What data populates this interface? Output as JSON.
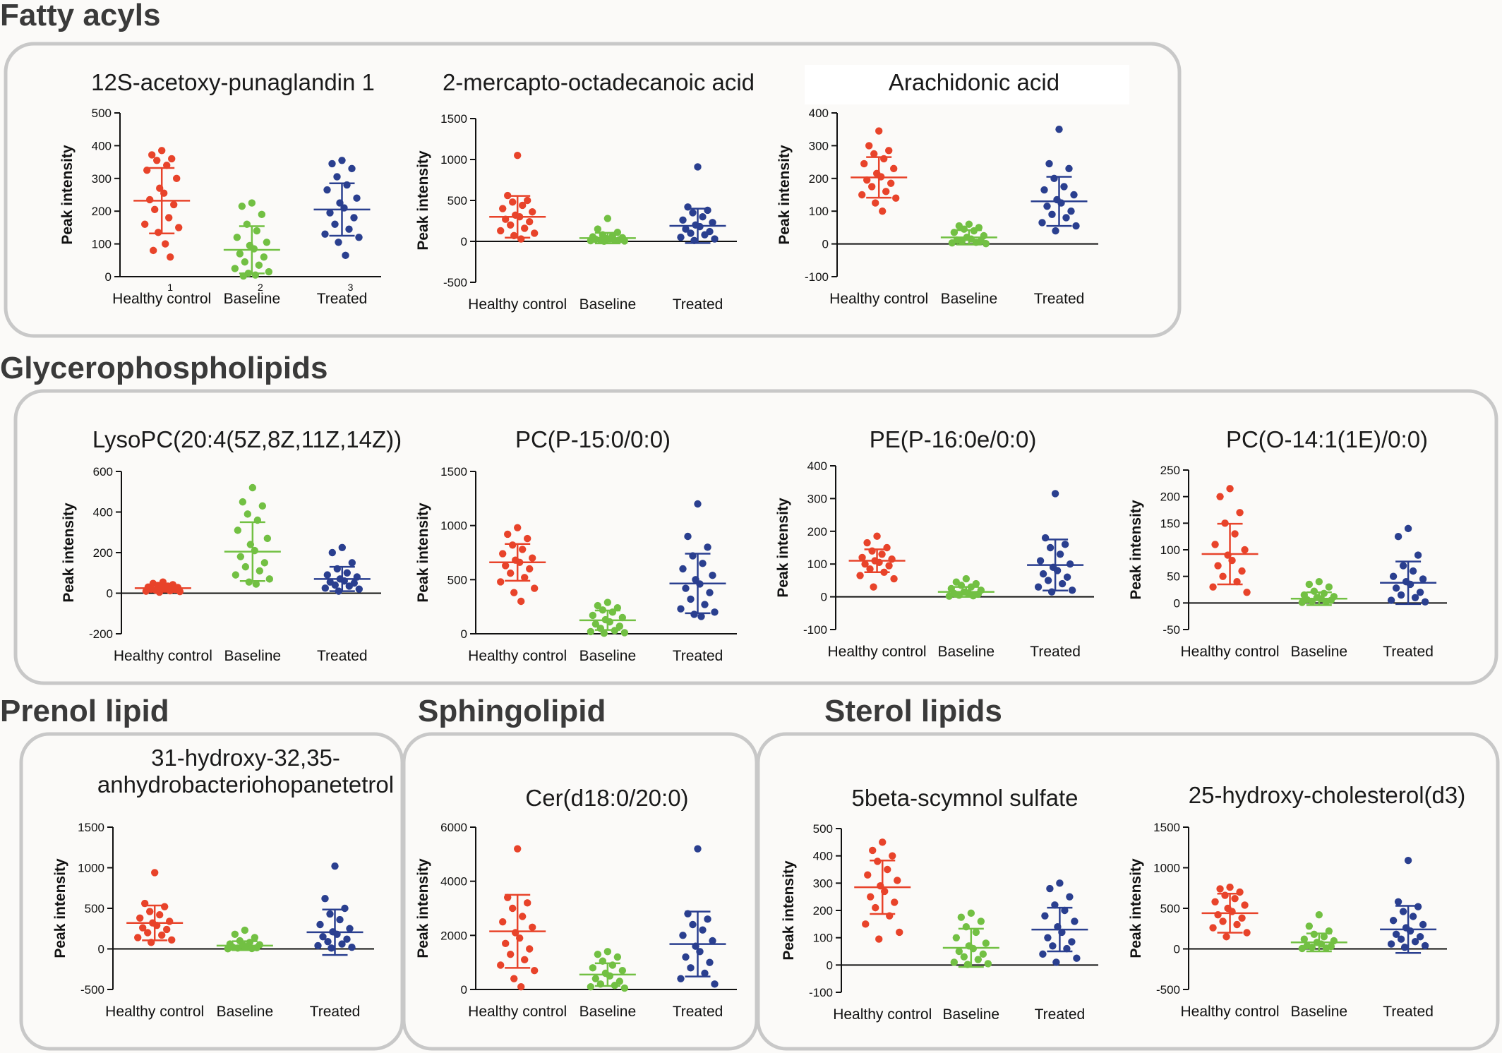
{
  "group_colors": {
    "Healthy control": "#e8432a",
    "Baseline": "#72c043",
    "Treated": "#2a3f8f"
  },
  "sections": [
    {
      "title": "Fatty acyls"
    },
    {
      "title": "Glycerophospholipids"
    },
    {
      "title": "Prenol lipid"
    },
    {
      "title": "Sphingolipid"
    },
    {
      "title": "Sterol lipids"
    }
  ],
  "chart_data": [
    {
      "type": "scatter",
      "title": "12S-acetoxy-punaglandin 1",
      "ylabel": "Peak intensity",
      "categories": [
        "Healthy control",
        "Baseline",
        "Treated"
      ],
      "category_numbers": [
        "1",
        "2",
        "3"
      ],
      "ylim": [
        0,
        500
      ],
      "yticks": [
        0,
        100,
        200,
        300,
        400,
        500
      ],
      "series": [
        {
          "name": "Healthy control",
          "mean": 232,
          "sd": 100,
          "points": [
            385,
            372,
            360,
            355,
            340,
            325,
            300,
            270,
            255,
            235,
            220,
            205,
            180,
            160,
            150,
            135,
            100,
            80,
            60
          ]
        },
        {
          "name": "Baseline",
          "mean": 82,
          "sd": 72,
          "points": [
            225,
            215,
            190,
            160,
            140,
            120,
            105,
            95,
            85,
            70,
            60,
            45,
            35,
            25,
            15,
            10,
            5,
            2
          ]
        },
        {
          "name": "Treated",
          "mean": 205,
          "sd": 80,
          "points": [
            355,
            345,
            330,
            305,
            280,
            265,
            240,
            225,
            210,
            195,
            180,
            160,
            145,
            130,
            120,
            105,
            65
          ]
        }
      ]
    },
    {
      "type": "scatter",
      "title": "2-mercapto-octadecanoic acid",
      "ylabel": "Peak intensity",
      "categories": [
        "Healthy control",
        "Baseline",
        "Treated"
      ],
      "ylim": [
        -500,
        1500
      ],
      "yticks": [
        -500,
        0,
        500,
        1000,
        1500
      ],
      "series": [
        {
          "name": "Healthy control",
          "mean": 300,
          "sd": 255,
          "points": [
            1050,
            560,
            500,
            480,
            440,
            400,
            360,
            320,
            300,
            270,
            240,
            200,
            160,
            130,
            100,
            70,
            30
          ]
        },
        {
          "name": "Baseline",
          "mean": 40,
          "sd": 65,
          "points": [
            280,
            150,
            110,
            80,
            70,
            55,
            45,
            35,
            30,
            25,
            20,
            15,
            10,
            8,
            5,
            2
          ]
        },
        {
          "name": "Treated",
          "mean": 190,
          "sd": 210,
          "points": [
            910,
            420,
            380,
            350,
            300,
            260,
            230,
            200,
            180,
            150,
            120,
            100,
            80,
            50,
            30,
            10
          ]
        }
      ]
    },
    {
      "type": "scatter",
      "title": "Arachidonic acid",
      "ylabel": "Peak intensity",
      "categories": [
        "Healthy control",
        "Baseline",
        "Treated"
      ],
      "ylim": [
        -100,
        400
      ],
      "yticks": [
        -100,
        0,
        100,
        200,
        300,
        400
      ],
      "series": [
        {
          "name": "Healthy control",
          "mean": 203,
          "sd": 62,
          "points": [
            345,
            300,
            285,
            275,
            260,
            245,
            230,
            215,
            205,
            195,
            185,
            175,
            160,
            150,
            140,
            125,
            100
          ]
        },
        {
          "name": "Baseline",
          "mean": 20,
          "sd": 22,
          "points": [
            60,
            55,
            50,
            45,
            40,
            35,
            25,
            20,
            15,
            12,
            10,
            8,
            5,
            3,
            1
          ]
        },
        {
          "name": "Treated",
          "mean": 130,
          "sd": 75,
          "points": [
            350,
            245,
            230,
            200,
            175,
            165,
            150,
            135,
            125,
            115,
            100,
            90,
            80,
            65,
            55,
            40
          ]
        }
      ]
    },
    {
      "type": "scatter",
      "title": "LysoPC(20:4(5Z,8Z,11Z,14Z))",
      "ylabel": "Peak intensity",
      "categories": [
        "Healthy control",
        "Baseline",
        "Treated"
      ],
      "ylim": [
        -200,
        600
      ],
      "yticks": [
        -200,
        0,
        200,
        400,
        600
      ],
      "series": [
        {
          "name": "Healthy control",
          "mean": 25,
          "sd": 18,
          "points": [
            55,
            48,
            42,
            38,
            35,
            30,
            28,
            25,
            22,
            20,
            18,
            15,
            12,
            10,
            8,
            5
          ]
        },
        {
          "name": "Baseline",
          "mean": 205,
          "sd": 145,
          "points": [
            520,
            450,
            430,
            390,
            360,
            310,
            270,
            240,
            210,
            180,
            150,
            130,
            110,
            90,
            70,
            55,
            45
          ]
        },
        {
          "name": "Treated",
          "mean": 70,
          "sd": 60,
          "points": [
            225,
            200,
            150,
            120,
            100,
            90,
            80,
            70,
            60,
            55,
            50,
            40,
            35,
            25,
            20,
            10
          ]
        }
      ]
    },
    {
      "type": "scatter",
      "title": "PC(P-15:0/0:0)",
      "ylabel": "Peak intensity",
      "categories": [
        "Healthy control",
        "Baseline",
        "Treated"
      ],
      "ylim": [
        0,
        1500
      ],
      "yticks": [
        0,
        500,
        1000,
        1500
      ],
      "series": [
        {
          "name": "Healthy control",
          "mean": 660,
          "sd": 170,
          "points": [
            980,
            920,
            880,
            820,
            780,
            740,
            700,
            680,
            660,
            630,
            600,
            560,
            520,
            480,
            420,
            380,
            300
          ]
        },
        {
          "name": "Baseline",
          "mean": 125,
          "sd": 90,
          "points": [
            290,
            260,
            240,
            220,
            200,
            170,
            150,
            130,
            110,
            90,
            70,
            50,
            30,
            20,
            10,
            5
          ]
        },
        {
          "name": "Treated",
          "mean": 465,
          "sd": 275,
          "points": [
            1200,
            900,
            800,
            720,
            650,
            600,
            540,
            500,
            460,
            420,
            380,
            320,
            270,
            230,
            200,
            180,
            160
          ]
        }
      ]
    },
    {
      "type": "scatter",
      "title": "PE(P-16:0e/0:0)",
      "ylabel": "Peak intensity",
      "categories": [
        "Healthy control",
        "Baseline",
        "Treated"
      ],
      "ylim": [
        -100,
        400
      ],
      "yticks": [
        -100,
        0,
        100,
        200,
        300,
        400
      ],
      "series": [
        {
          "name": "Healthy control",
          "mean": 110,
          "sd": 35,
          "points": [
            185,
            165,
            150,
            140,
            130,
            120,
            115,
            110,
            105,
            100,
            95,
            85,
            75,
            65,
            55,
            30
          ]
        },
        {
          "name": "Baseline",
          "mean": 15,
          "sd": 15,
          "points": [
            55,
            45,
            40,
            35,
            30,
            25,
            20,
            15,
            12,
            10,
            8,
            5,
            3,
            2
          ]
        },
        {
          "name": "Treated",
          "mean": 97,
          "sd": 78,
          "points": [
            315,
            180,
            160,
            150,
            130,
            110,
            100,
            90,
            80,
            70,
            60,
            50,
            40,
            30,
            20,
            15
          ]
        }
      ]
    },
    {
      "type": "scatter",
      "title": "PC(O-14:1(1E)/0:0)",
      "ylabel": "Peak intensity",
      "categories": [
        "Healthy control",
        "Baseline",
        "Treated"
      ],
      "ylim": [
        -50,
        250
      ],
      "yticks": [
        -50,
        0,
        50,
        100,
        150,
        200,
        250
      ],
      "series": [
        {
          "name": "Healthy control",
          "mean": 92,
          "sd": 57,
          "points": [
            215,
            200,
            170,
            150,
            130,
            110,
            100,
            90,
            80,
            70,
            60,
            50,
            40,
            30,
            20
          ]
        },
        {
          "name": "Baseline",
          "mean": 8,
          "sd": 12,
          "points": [
            40,
            35,
            30,
            22,
            18,
            15,
            12,
            10,
            8,
            6,
            5,
            3,
            2,
            1
          ]
        },
        {
          "name": "Treated",
          "mean": 38,
          "sd": 40,
          "points": [
            140,
            125,
            90,
            70,
            60,
            50,
            45,
            40,
            35,
            28,
            20,
            15,
            10,
            5,
            2
          ]
        }
      ]
    },
    {
      "type": "scatter",
      "title": "31-hydroxy-32,35-anhydrobacteriohopanetetrol",
      "ylabel": "Peak intensity",
      "categories": [
        "Healthy control",
        "Baseline",
        "Treated"
      ],
      "ylim": [
        -500,
        1500
      ],
      "yticks": [
        -500,
        0,
        500,
        1000,
        1500
      ],
      "series": [
        {
          "name": "Healthy control",
          "mean": 320,
          "sd": 215,
          "points": [
            940,
            560,
            520,
            460,
            420,
            380,
            340,
            320,
            290,
            260,
            240,
            200,
            170,
            140,
            110,
            80
          ]
        },
        {
          "name": "Baseline",
          "mean": 40,
          "sd": 55,
          "points": [
            230,
            180,
            140,
            100,
            80,
            60,
            50,
            40,
            30,
            20,
            15,
            10,
            5,
            2
          ]
        },
        {
          "name": "Treated",
          "mean": 205,
          "sd": 280,
          "points": [
            1020,
            620,
            500,
            430,
            360,
            300,
            250,
            210,
            180,
            150,
            120,
            90,
            60,
            40,
            20,
            10
          ]
        }
      ]
    },
    {
      "type": "scatter",
      "title": "Cer(d18:0/20:0)",
      "ylabel": "Peak intensity",
      "categories": [
        "Healthy control",
        "Baseline",
        "Treated"
      ],
      "ylim": [
        0,
        6000
      ],
      "yticks": [
        0,
        2000,
        4000,
        6000
      ],
      "series": [
        {
          "name": "Healthy control",
          "mean": 2150,
          "sd": 1350,
          "points": [
            5200,
            3400,
            3200,
            3000,
            2700,
            2500,
            2300,
            2100,
            1900,
            1700,
            1500,
            1300,
            1100,
            900,
            700,
            400,
            100
          ]
        },
        {
          "name": "Baseline",
          "mean": 550,
          "sd": 420,
          "points": [
            1400,
            1300,
            1200,
            1050,
            900,
            800,
            700,
            600,
            500,
            400,
            300,
            200,
            150,
            100,
            50
          ]
        },
        {
          "name": "Treated",
          "mean": 1680,
          "sd": 1200,
          "points": [
            5200,
            2800,
            2600,
            2400,
            2200,
            2000,
            1800,
            1600,
            1400,
            1200,
            1000,
            800,
            600,
            400,
            200
          ]
        }
      ]
    },
    {
      "type": "scatter",
      "title": "5beta-scymnol sulfate",
      "ylabel": "Peak intensity",
      "categories": [
        "Healthy control",
        "Baseline",
        "Treated"
      ],
      "ylim": [
        -100,
        500
      ],
      "yticks": [
        -100,
        0,
        100,
        200,
        300,
        400,
        500
      ],
      "series": [
        {
          "name": "Healthy control",
          "mean": 285,
          "sd": 98,
          "points": [
            450,
            420,
            400,
            380,
            350,
            330,
            310,
            290,
            270,
            250,
            230,
            210,
            180,
            150,
            120,
            95
          ]
        },
        {
          "name": "Baseline",
          "mean": 63,
          "sd": 70,
          "points": [
            190,
            175,
            160,
            140,
            120,
            100,
            80,
            70,
            60,
            50,
            40,
            30,
            20,
            10,
            5,
            2
          ]
        },
        {
          "name": "Treated",
          "mean": 130,
          "sd": 80,
          "points": [
            300,
            280,
            250,
            220,
            200,
            180,
            160,
            140,
            120,
            100,
            85,
            70,
            60,
            40,
            25,
            10
          ]
        }
      ]
    },
    {
      "type": "scatter",
      "title": "25-hydroxy-cholesterol(d3)",
      "ylabel": "Peak intensity",
      "categories": [
        "Healthy control",
        "Baseline",
        "Treated"
      ],
      "ylim": [
        -500,
        1500
      ],
      "yticks": [
        -500,
        0,
        500,
        1000,
        1500
      ],
      "series": [
        {
          "name": "Healthy control",
          "mean": 440,
          "sd": 240,
          "points": [
            760,
            740,
            700,
            660,
            620,
            580,
            540,
            500,
            460,
            420,
            380,
            340,
            300,
            260,
            200,
            150
          ]
        },
        {
          "name": "Baseline",
          "mean": 80,
          "sd": 110,
          "points": [
            420,
            280,
            220,
            180,
            150,
            120,
            100,
            80,
            60,
            40,
            30,
            20,
            10,
            5
          ]
        },
        {
          "name": "Treated",
          "mean": 240,
          "sd": 290,
          "points": [
            1090,
            580,
            520,
            460,
            400,
            350,
            300,
            260,
            220,
            180,
            150,
            120,
            90,
            60,
            40,
            20
          ]
        }
      ]
    }
  ]
}
